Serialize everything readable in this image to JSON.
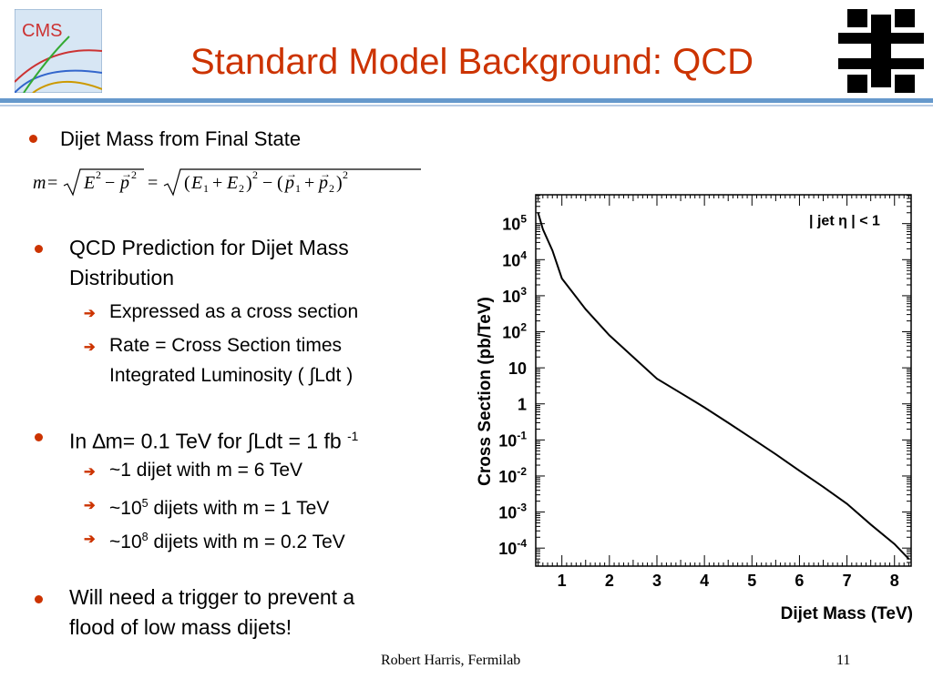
{
  "header": {
    "title": "Standard Model Background: QCD",
    "cms_logo_text": "CMS"
  },
  "bullets": {
    "b1": "Dijet Mass from Final State",
    "b2": "QCD Prediction for Dijet Mass Distribution",
    "b2_sub1": "Expressed as a cross section",
    "b2_sub2_line1": "Rate = Cross Section times",
    "b2_sub2_line2": "Integrated Luminosity ( ∫Ldt )",
    "b3_prefix": "In ∆m= 0.1 TeV for ∫Ldt = 1 fb",
    "b3_exp": "-1",
    "b3_sub1": "~1 dijet with m = 6 TeV",
    "b3_sub2_pre": "~10",
    "b3_sub2_exp": "5",
    "b3_sub2_post": " dijets with m = 1 TeV",
    "b3_sub3_pre": "~10",
    "b3_sub3_exp": "8",
    "b3_sub3_post": " dijets with m = 0.2 TeV",
    "b4_line1": "Will need a trigger to prevent a",
    "b4_line2": "flood of low mass dijets!"
  },
  "footer": {
    "author": "Robert Harris, Fermilab",
    "page": "11"
  },
  "colors": {
    "title": "#cc3300",
    "accent": "#cc3300",
    "rule": "#6699cc"
  },
  "chart_data": {
    "type": "line",
    "xlabel": "Dijet Mass (TeV)",
    "ylabel": "Cross Section (pb/TeV)",
    "annotation": "| jet η | < 1",
    "log_y": true,
    "xlim": [
      0.45,
      8.35
    ],
    "ylim_exp": [
      -4.5,
      5.8
    ],
    "x_ticks": [
      "1",
      "2",
      "3",
      "4",
      "5",
      "6",
      "7",
      "8"
    ],
    "y_ticks": [
      {
        "exp": 5,
        "base": "10",
        "sup": "5"
      },
      {
        "exp": 4,
        "base": "10",
        "sup": "4"
      },
      {
        "exp": 3,
        "base": "10",
        "sup": "3"
      },
      {
        "exp": 2,
        "base": "10",
        "sup": "2"
      },
      {
        "exp": 1,
        "base": "10",
        "sup": ""
      },
      {
        "exp": 0,
        "base": "1",
        "sup": ""
      },
      {
        "exp": -1,
        "base": "10",
        "sup": "-1"
      },
      {
        "exp": -2,
        "base": "10",
        "sup": "-2"
      },
      {
        "exp": -3,
        "base": "10",
        "sup": "-3"
      },
      {
        "exp": -4,
        "base": "10",
        "sup": "-4"
      }
    ],
    "series": [
      {
        "x": [
          0.5,
          0.6,
          0.8,
          1.0,
          1.5,
          2.0,
          2.5,
          3.0,
          3.5,
          4.0,
          4.5,
          5.0,
          5.5,
          6.0,
          6.5,
          7.0,
          7.5,
          8.0,
          8.3
        ],
        "y": [
          200000,
          70000,
          18000,
          3000,
          420,
          80,
          20,
          5,
          2.0,
          0.8,
          0.3,
          0.11,
          0.04,
          0.014,
          0.005,
          0.0017,
          0.00045,
          0.00013,
          5e-05
        ]
      }
    ]
  }
}
